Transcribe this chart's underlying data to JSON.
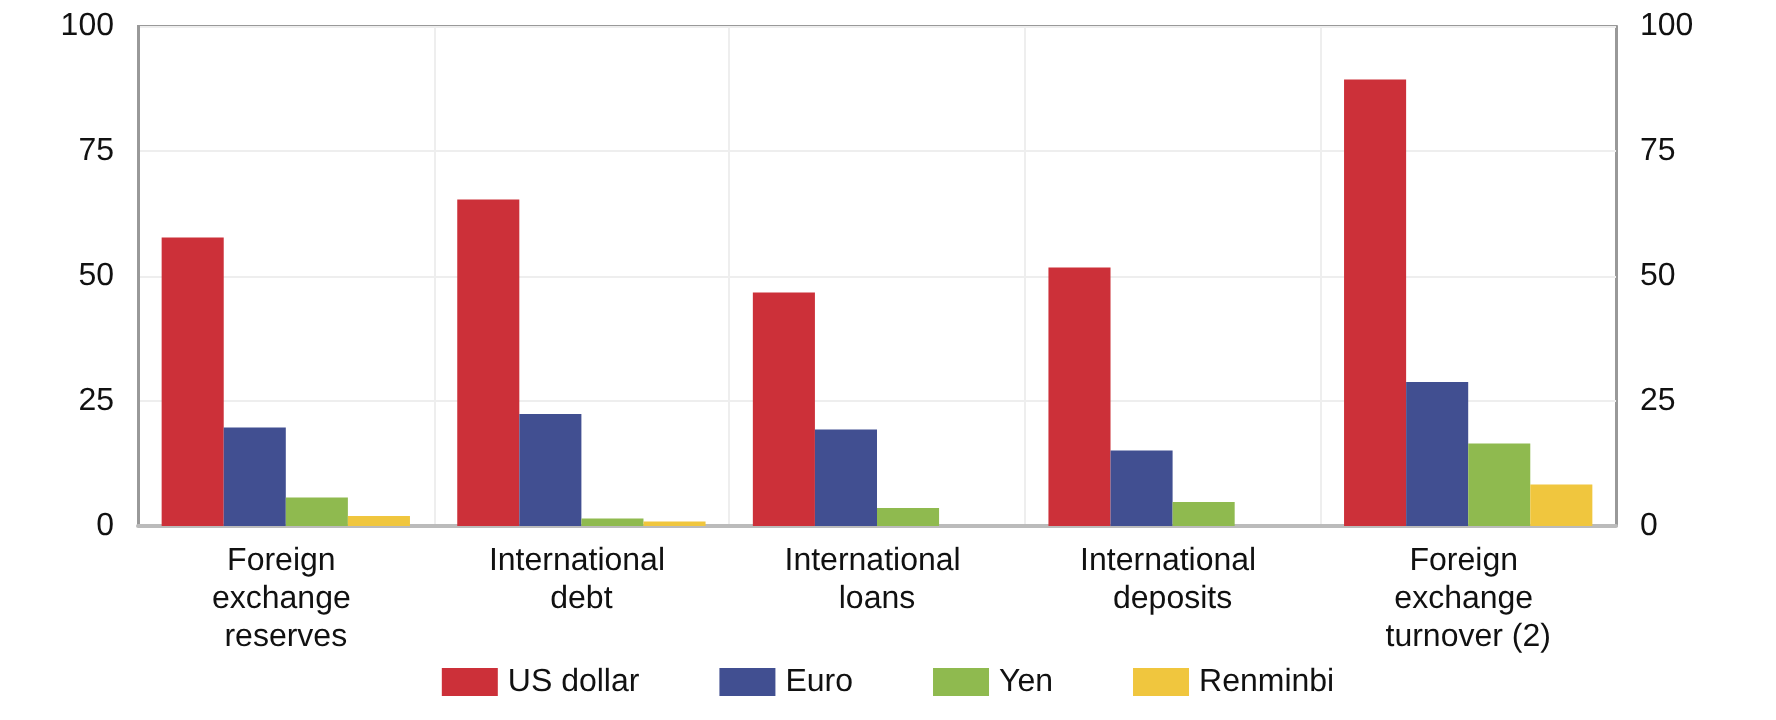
{
  "chart_data": {
    "type": "bar",
    "categories": [
      "Foreign exchange reserves",
      "International debt",
      "International loans",
      "International deposits",
      "Foreign exchange turnover (2)"
    ],
    "series": [
      {
        "name": "US dollar",
        "color": "#cc3039",
        "values": [
          57.7,
          65.3,
          46.7,
          51.7,
          89.3
        ]
      },
      {
        "name": "Euro",
        "color": "#414f91",
        "values": [
          19.7,
          22.4,
          19.3,
          15.1,
          28.8
        ]
      },
      {
        "name": "Yen",
        "color": "#8fba4f",
        "values": [
          5.7,
          1.5,
          3.6,
          4.8,
          16.5
        ]
      },
      {
        "name": "Renminbi",
        "color": "#f0c63e",
        "values": [
          2.0,
          0.9,
          null,
          null,
          8.3
        ]
      }
    ],
    "ylim": [
      0,
      100
    ],
    "yticks": [
      0,
      25,
      50,
      75,
      100
    ],
    "y2lim": [
      0,
      100
    ],
    "y2ticks": [
      0,
      25,
      50,
      75,
      100
    ],
    "grid": true,
    "legend": "bottom"
  }
}
